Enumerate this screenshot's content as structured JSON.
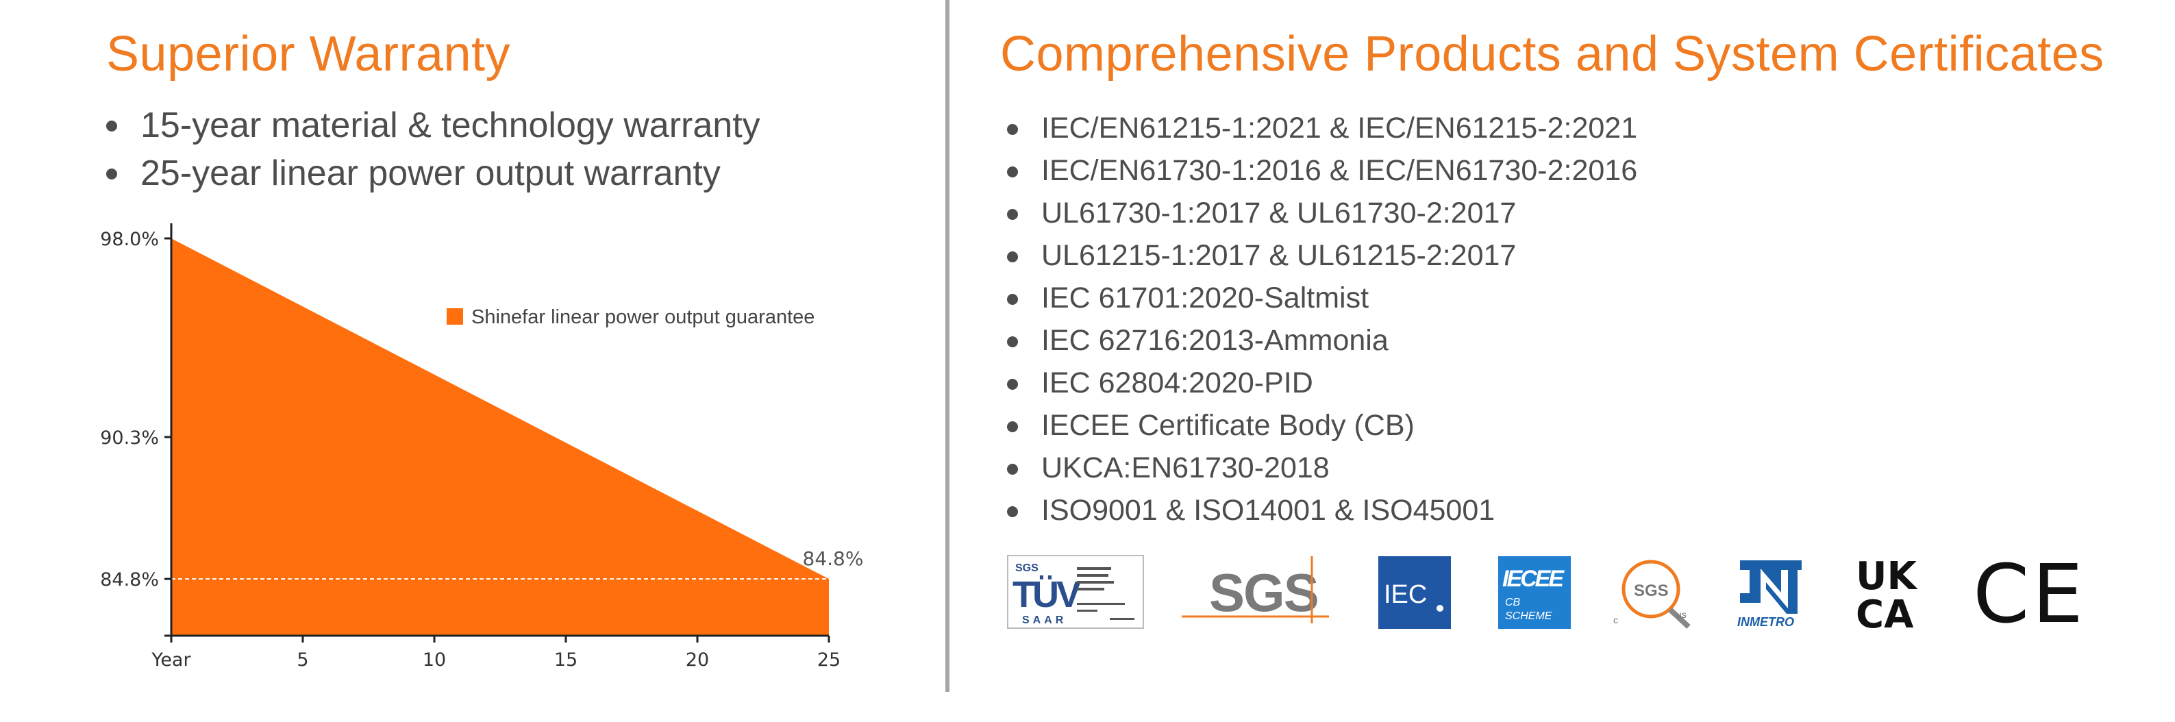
{
  "warranty": {
    "title": "Superior Warranty",
    "items": [
      "15-year material & technology warranty",
      "25-year linear power output warranty"
    ]
  },
  "certificates": {
    "title": "Comprehensive Products and System Certificates",
    "items": [
      "IEC/EN61215-1:2021 & IEC/EN61215-2:2021",
      "IEC/EN61730-1:2016 & IEC/EN61730-2:2016",
      "UL61730-1:2017 & UL61730-2:2017",
      "UL61215-1:2017 & UL61215-2:2017",
      "IEC 61701:2020-Saltmist",
      "IEC 62716:2013-Ammonia",
      "IEC 62804:2020-PID",
      "IECEE Certificate Body (CB)",
      "UKCA:EN61730-2018",
      "ISO9001 & ISO14001 & ISO45001"
    ],
    "logos": {
      "tuv": {
        "top": "SGS",
        "main": "TÜV",
        "bottom": "SAAR"
      },
      "sgs": "SGS",
      "iec": "IEC",
      "iecee": {
        "main": "IECEE",
        "sub1": "CB",
        "sub2": "SCHEME"
      },
      "sgs_us": {
        "main": "SGS",
        "c": "c",
        "us": "us"
      },
      "inmetro": "INMETRO",
      "ukca": {
        "line1": "UK",
        "line2": "CA"
      },
      "ce": "CE"
    }
  },
  "colors": {
    "accent": "#f07b21",
    "fill": "#ff6f0d",
    "text": "#4d4d4d"
  },
  "chart_data": {
    "type": "area",
    "x": [
      0,
      25
    ],
    "values": [
      98.0,
      84.8
    ],
    "y_ticks": [
      "98.0%",
      "90.3%",
      "84.8%"
    ],
    "y_tick_values": [
      98.0,
      90.3,
      84.8
    ],
    "x_ticks": [
      "Year",
      "5",
      "10",
      "15",
      "20",
      "25"
    ],
    "x_tick_values": [
      0,
      5,
      10,
      15,
      20,
      25
    ],
    "ylim": [
      82.6,
      98.0
    ],
    "xlim": [
      0,
      25
    ],
    "end_label": "84.8%",
    "guideline_value": 84.8,
    "legend": "Shinefar linear power output guarantee",
    "legend_position": "top-right"
  }
}
